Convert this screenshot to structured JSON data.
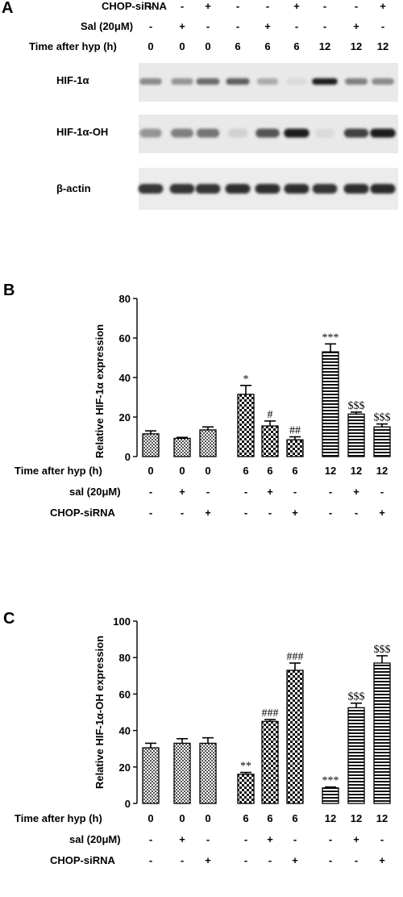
{
  "panel_a": {
    "panel_label": "A",
    "header_rows": [
      {
        "label": "CHOP-siRNA",
        "values": [
          "-",
          "-",
          "+",
          "-",
          "-",
          "+",
          "-",
          "-",
          "+"
        ]
      },
      {
        "label": "Sal (20μM)",
        "values": [
          "-",
          "+",
          "-",
          "-",
          "+",
          "-",
          "-",
          "+",
          "-"
        ]
      },
      {
        "label": "Time after hyp (h)",
        "values": [
          "0",
          "0",
          "0",
          "6",
          "6",
          "6",
          "12",
          "12",
          "12"
        ]
      }
    ],
    "blots": [
      {
        "label": "HIF-1α",
        "intensities": [
          0.45,
          0.4,
          0.6,
          0.65,
          0.3,
          0.08,
          0.95,
          0.5,
          0.45
        ]
      },
      {
        "label": "HIF-1α-OH",
        "intensities": [
          0.4,
          0.5,
          0.55,
          0.12,
          0.7,
          0.95,
          0.08,
          0.8,
          0.95
        ]
      },
      {
        "label": "β-actin",
        "intensities": [
          0.85,
          0.85,
          0.85,
          0.88,
          0.88,
          0.88,
          0.85,
          0.88,
          0.9
        ]
      }
    ]
  },
  "chart_data": [
    {
      "panel_label": "B",
      "type": "bar",
      "ylabel": "Relative HIF-1α expression",
      "ylim": [
        0,
        80
      ],
      "yticks": [
        0,
        20,
        40,
        60,
        80
      ],
      "values": [
        11.5,
        9.2,
        13.5,
        31.5,
        15.5,
        8.5,
        53,
        21.5,
        15
      ],
      "errors": [
        1.5,
        0.5,
        1.5,
        4.5,
        2.5,
        1.5,
        4,
        1,
        1.5
      ],
      "annotations": [
        "",
        "",
        "",
        "*",
        "#",
        "##",
        "***",
        "$$$",
        "$$$"
      ],
      "patterns": [
        "checker-fine",
        "checker-fine",
        "checker-fine",
        "checker-coarse",
        "checker-coarse",
        "checker-coarse",
        "hstripe",
        "hstripe",
        "hstripe"
      ],
      "condition_rows": [
        {
          "label": "Time after hyp (h)",
          "values": [
            "0",
            "0",
            "0",
            "6",
            "6",
            "6",
            "12",
            "12",
            "12"
          ]
        },
        {
          "label": "sal (20μM)",
          "values": [
            "-",
            "+",
            "-",
            "-",
            "+",
            "-",
            "-",
            "+",
            "-"
          ]
        },
        {
          "label": "CHOP-siRNA",
          "values": [
            "-",
            "-",
            "+",
            "-",
            "-",
            "+",
            "-",
            "-",
            "+"
          ]
        }
      ]
    },
    {
      "panel_label": "C",
      "type": "bar",
      "ylabel": "Relative HIF-1α-OH expression",
      "ylim": [
        0,
        100
      ],
      "yticks": [
        0,
        20,
        40,
        60,
        80,
        100
      ],
      "values": [
        30.5,
        33,
        33,
        16,
        45,
        73,
        8.5,
        52.5,
        77
      ],
      "errors": [
        2.5,
        2.5,
        3,
        1,
        1,
        4,
        0.5,
        2.5,
        4
      ],
      "annotations": [
        "",
        "",
        "",
        "**",
        "###",
        "###",
        "***",
        "$$$",
        "$$$"
      ],
      "patterns": [
        "checker-fine",
        "checker-fine",
        "checker-fine",
        "checker-coarse",
        "checker-coarse",
        "checker-coarse",
        "hstripe",
        "hstripe",
        "hstripe"
      ],
      "condition_rows": [
        {
          "label": "Time after hyp (h)",
          "values": [
            "0",
            "0",
            "0",
            "6",
            "6",
            "6",
            "12",
            "12",
            "12"
          ]
        },
        {
          "label": "sal (20μM)",
          "values": [
            "-",
            "+",
            "-",
            "-",
            "+",
            "-",
            "-",
            "+",
            "-"
          ]
        },
        {
          "label": "CHOP-siRNA",
          "values": [
            "-",
            "-",
            "+",
            "-",
            "-",
            "+",
            "-",
            "-",
            "+"
          ]
        }
      ]
    }
  ]
}
